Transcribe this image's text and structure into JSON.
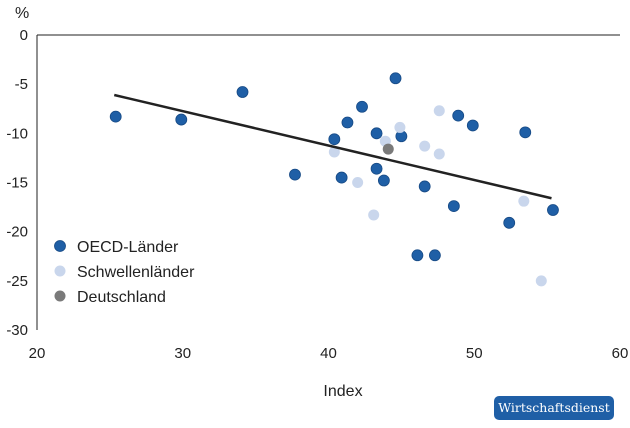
{
  "chart_data": {
    "type": "scatter",
    "xlabel": "Index",
    "ylabel": "%",
    "xlim": [
      20,
      60
    ],
    "ylim": [
      -30,
      0
    ],
    "xticks": [
      20,
      30,
      40,
      50,
      60
    ],
    "yticks": [
      0,
      -5,
      -10,
      -15,
      -20,
      -25,
      -30
    ],
    "grid": false,
    "legend_position": "bottom-left",
    "series": [
      {
        "name": "OECD-Länder",
        "color": "#1f5fa6",
        "points": [
          {
            "x": 25.4,
            "y": -8.3
          },
          {
            "x": 29.9,
            "y": -8.6
          },
          {
            "x": 34.1,
            "y": -5.8
          },
          {
            "x": 37.7,
            "y": -14.2
          },
          {
            "x": 40.4,
            "y": -10.6
          },
          {
            "x": 40.9,
            "y": -14.5
          },
          {
            "x": 41.3,
            "y": -8.9
          },
          {
            "x": 42.3,
            "y": -7.3
          },
          {
            "x": 43.3,
            "y": -10.0
          },
          {
            "x": 43.3,
            "y": -13.6
          },
          {
            "x": 43.8,
            "y": -14.8
          },
          {
            "x": 44.6,
            "y": -4.4
          },
          {
            "x": 45.0,
            "y": -10.3
          },
          {
            "x": 46.1,
            "y": -22.4
          },
          {
            "x": 46.6,
            "y": -15.4
          },
          {
            "x": 47.3,
            "y": -22.4
          },
          {
            "x": 48.6,
            "y": -17.4
          },
          {
            "x": 48.9,
            "y": -8.2
          },
          {
            "x": 49.9,
            "y": -9.2
          },
          {
            "x": 52.4,
            "y": -19.1
          },
          {
            "x": 53.5,
            "y": -9.9
          },
          {
            "x": 55.4,
            "y": -17.8
          }
        ]
      },
      {
        "name": "Schwellenländer",
        "color": "#c9d6ec",
        "points": [
          {
            "x": 40.4,
            "y": -11.9
          },
          {
            "x": 42.0,
            "y": -15.0
          },
          {
            "x": 43.1,
            "y": -18.3
          },
          {
            "x": 43.9,
            "y": -10.8
          },
          {
            "x": 44.9,
            "y": -9.4
          },
          {
            "x": 46.6,
            "y": -11.3
          },
          {
            "x": 47.6,
            "y": -7.7
          },
          {
            "x": 47.6,
            "y": -12.1
          },
          {
            "x": 53.4,
            "y": -16.9
          },
          {
            "x": 54.6,
            "y": -25.0
          }
        ]
      },
      {
        "name": "Deutschland",
        "color": "#7a7a7a",
        "points": [
          {
            "x": 44.1,
            "y": -11.6
          }
        ]
      }
    ],
    "trendline": {
      "x": [
        25.3,
        55.3
      ],
      "y": [
        -6.1,
        -16.6
      ],
      "color": "#222222"
    }
  },
  "badge": {
    "label": "Wirtschaftsdienst",
    "color": "#1f5fa6"
  }
}
